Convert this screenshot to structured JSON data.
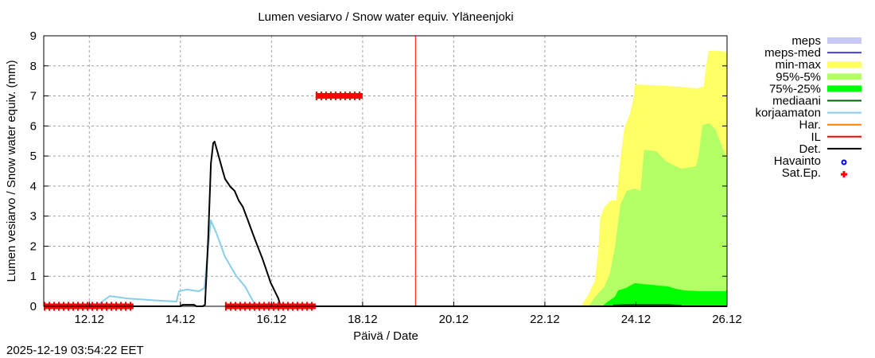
{
  "timestamp": "2025-12-19 03:54:22 EET",
  "chart_data": {
    "type": "area",
    "title": "Lumen vesiarvo / Snow water equiv.  Yläneenjoki",
    "xlabel": "Päivä / Date",
    "ylabel": "Lumen vesiarvo / Snow water equiv. (mm)",
    "x_unit": "days since 11.12 00:00",
    "xlim": [
      0,
      15
    ],
    "ylim": [
      0,
      9
    ],
    "grid": true,
    "legend_position": "right",
    "xticks": [
      {
        "value": 1,
        "label": "12.12"
      },
      {
        "value": 3,
        "label": "14.12"
      },
      {
        "value": 5,
        "label": "16.12"
      },
      {
        "value": 7,
        "label": "18.12"
      },
      {
        "value": 9,
        "label": "20.12"
      },
      {
        "value": 11,
        "label": "22.12"
      },
      {
        "value": 13,
        "label": "24.12"
      },
      {
        "value": 15,
        "label": "26.12"
      }
    ],
    "yticks": [
      0,
      1,
      2,
      3,
      4,
      5,
      6,
      7,
      8,
      9
    ],
    "legend": [
      {
        "label": "meps",
        "kind": "box",
        "color": "#c8c8f8"
      },
      {
        "label": "meps-med",
        "kind": "line",
        "color": "#4040e0"
      },
      {
        "label": "min-max",
        "kind": "box",
        "color": "#ffff66"
      },
      {
        "label": "95%-5%",
        "kind": "box",
        "color": "#b3ff66"
      },
      {
        "label": "75%-25%",
        "kind": "box",
        "color": "#00ff00"
      },
      {
        "label": "mediaani",
        "kind": "line",
        "color": "#006400"
      },
      {
        "label": "korjaamaton",
        "kind": "line",
        "color": "#87ceeb"
      },
      {
        "label": "Har.",
        "kind": "line",
        "color": "#ff8000"
      },
      {
        "label": "IL",
        "kind": "line",
        "color": "#ff0000"
      },
      {
        "label": "Det.",
        "kind": "line",
        "color": "#000000"
      },
      {
        "label": "Havainto",
        "kind": "circle",
        "color": "#0000ff"
      },
      {
        "label": "Sat.Ep.",
        "kind": "plus",
        "color": "#ff0000"
      }
    ],
    "bands": [
      {
        "name": "min-max",
        "color": "#ffff66",
        "upper": [
          [
            11.79,
            0
          ],
          [
            11.96,
            0.4
          ],
          [
            12.1,
            0.85
          ],
          [
            12.17,
            1.8
          ],
          [
            12.22,
            2.96
          ],
          [
            12.31,
            3.31
          ],
          [
            12.45,
            3.52
          ],
          [
            12.57,
            3.52
          ],
          [
            12.66,
            4.9
          ],
          [
            12.75,
            5.96
          ],
          [
            12.87,
            6.41
          ],
          [
            12.96,
            7.01
          ],
          [
            12.97,
            7.38
          ],
          [
            13.36,
            7.36
          ],
          [
            13.93,
            7.31
          ],
          [
            14.35,
            7.25
          ],
          [
            14.49,
            7.33
          ],
          [
            14.54,
            7.99
          ],
          [
            14.6,
            8.5
          ],
          [
            14.79,
            8.5
          ],
          [
            15,
            8.47
          ]
        ]
      },
      {
        "name": "95%-5%",
        "color": "#b3ff66",
        "upper": [
          [
            11.96,
            0
          ],
          [
            12.08,
            0.26
          ],
          [
            12.31,
            0.66
          ],
          [
            12.43,
            1.11
          ],
          [
            12.54,
            1.99
          ],
          [
            12.66,
            3.39
          ],
          [
            12.8,
            3.84
          ],
          [
            12.97,
            3.92
          ],
          [
            13.1,
            3.84
          ],
          [
            13.15,
            4.71
          ],
          [
            13.18,
            5.21
          ],
          [
            13.45,
            5.16
          ],
          [
            13.65,
            4.84
          ],
          [
            13.83,
            4.69
          ],
          [
            14.0,
            4.58
          ],
          [
            14.32,
            4.66
          ],
          [
            14.37,
            4.98
          ],
          [
            14.46,
            6.03
          ],
          [
            14.61,
            6.09
          ],
          [
            14.75,
            5.88
          ],
          [
            14.93,
            5.16
          ],
          [
            15,
            4.9
          ]
        ]
      },
      {
        "name": "75%-25%",
        "color": "#00ff00",
        "upper": [
          [
            12.26,
            0
          ],
          [
            12.36,
            0.13
          ],
          [
            12.54,
            0.32
          ],
          [
            12.61,
            0.53
          ],
          [
            12.78,
            0.61
          ],
          [
            12.97,
            0.77
          ],
          [
            13.36,
            0.71
          ],
          [
            13.71,
            0.66
          ],
          [
            13.88,
            0.58
          ],
          [
            14.06,
            0.53
          ],
          [
            14.46,
            0.5
          ],
          [
            14.98,
            0.5
          ],
          [
            15,
            0.61
          ]
        ]
      }
    ],
    "series": [
      {
        "name": "mediaani",
        "color": "#006400",
        "width": 2,
        "points": [
          [
            12.5,
            0.03
          ],
          [
            12.8,
            0.05
          ],
          [
            13.7,
            0.05
          ],
          [
            14.0,
            0.02
          ]
        ]
      },
      {
        "name": "korjaamaton",
        "color": "#87ceeb",
        "width": 2,
        "points": [
          [
            0,
            0
          ],
          [
            1.2,
            0
          ],
          [
            1.257,
            0.13
          ],
          [
            1.449,
            0.34
          ],
          [
            1.833,
            0.26
          ],
          [
            2.532,
            0.19
          ],
          [
            2.916,
            0.16
          ],
          [
            2.968,
            0.5
          ],
          [
            3.143,
            0.56
          ],
          [
            3.405,
            0.5
          ],
          [
            3.527,
            0.61
          ],
          [
            3.667,
            2.86
          ],
          [
            3.789,
            2.44
          ],
          [
            3.981,
            1.64
          ],
          [
            4.226,
            1.01
          ],
          [
            4.418,
            0.66
          ],
          [
            4.627,
            0.08
          ]
        ]
      },
      {
        "name": "Det.",
        "color": "#000000",
        "width": 2,
        "points": [
          [
            0,
            0
          ],
          [
            3.0,
            0
          ],
          [
            3.05,
            0.05
          ],
          [
            3.3,
            0.05
          ],
          [
            3.35,
            0
          ],
          [
            3.49,
            0
          ],
          [
            3.54,
            0.05
          ],
          [
            3.61,
            2.25
          ],
          [
            3.67,
            4.76
          ],
          [
            3.72,
            5.43
          ],
          [
            3.75,
            5.48
          ],
          [
            3.81,
            5.16
          ],
          [
            3.93,
            4.5
          ],
          [
            3.98,
            4.24
          ],
          [
            4.1,
            3.97
          ],
          [
            4.19,
            3.84
          ],
          [
            4.28,
            3.52
          ],
          [
            4.37,
            3.31
          ],
          [
            4.45,
            2.99
          ],
          [
            4.63,
            2.25
          ],
          [
            4.8,
            1.59
          ],
          [
            4.98,
            0.79
          ],
          [
            5.15,
            0.26
          ],
          [
            5.2,
            0
          ],
          [
            15,
            0
          ]
        ]
      }
    ],
    "il_time": 8.16,
    "sat_ep": [
      {
        "from": 0,
        "to": 1.97,
        "value": 0
      },
      {
        "from": 3.98,
        "to": 5.97,
        "value": 0
      },
      {
        "from": 5.97,
        "to": 7.0,
        "value": 7
      }
    ]
  }
}
